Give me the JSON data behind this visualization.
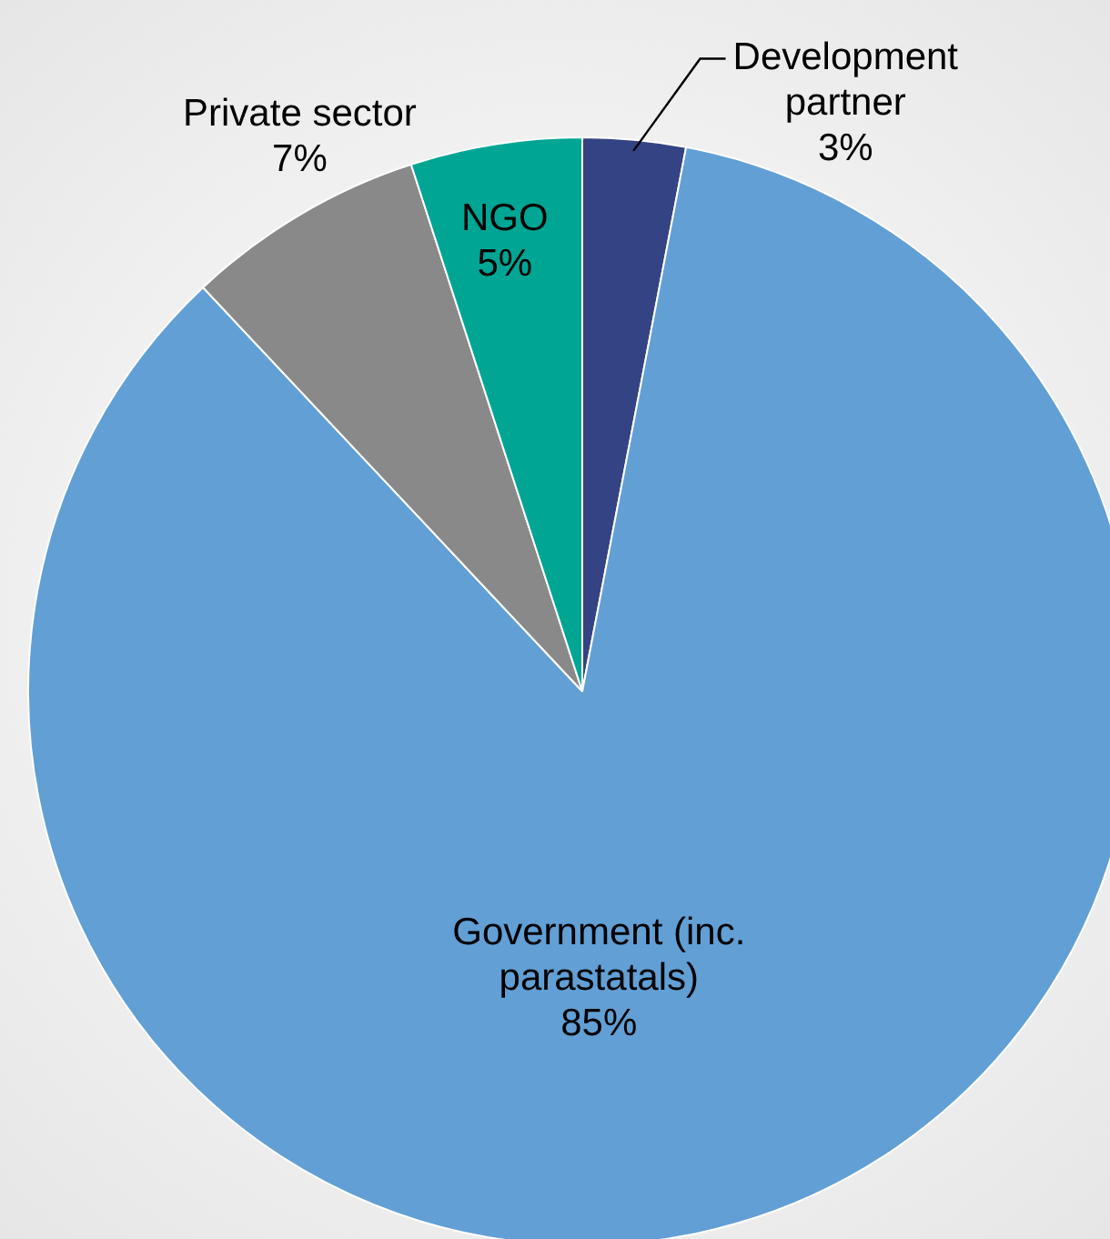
{
  "chart_data": {
    "type": "pie",
    "categories": [
      "Development partner",
      "Government (inc. parastatals)",
      "Private sector",
      "NGO"
    ],
    "values": [
      3,
      85,
      7,
      5
    ],
    "colors": [
      "#344383",
      "#629fd5",
      "#898989",
      "#00a594"
    ],
    "value_labels": [
      "3%",
      "85%",
      "7%",
      "5%"
    ],
    "legend": false
  }
}
